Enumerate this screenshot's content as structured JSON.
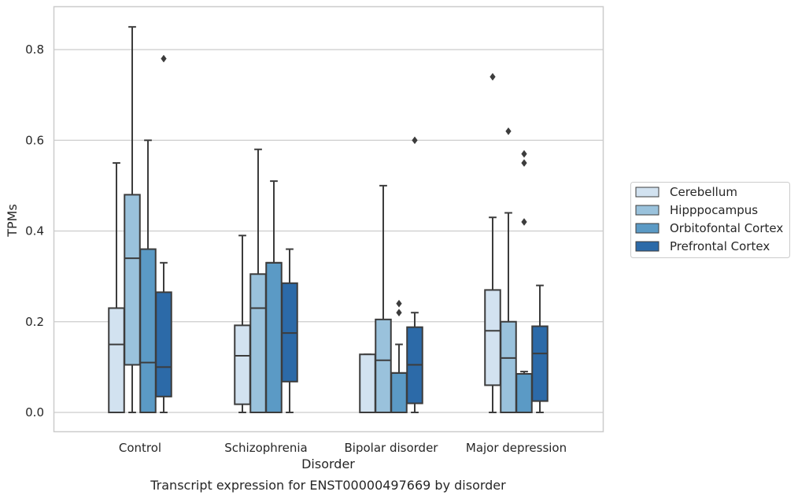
{
  "chart_data": {
    "type": "box",
    "caption": "Transcript expression for ENST00000497669 by disorder",
    "xlabel": "Disorder",
    "ylabel": "TPMs",
    "ylim": [
      -0.04,
      0.9
    ],
    "yticks": [
      0.0,
      0.2,
      0.4,
      0.6,
      0.8
    ],
    "ytick_labels": [
      "0.0",
      "0.2",
      "0.4",
      "0.6",
      "0.8"
    ],
    "grid": true,
    "legend_position": "right",
    "categories": [
      "Control",
      "Schizophrenia",
      "Bipolar disorder",
      "Major depression"
    ],
    "series": [
      {
        "name": "Cerebellum",
        "color": "#d2e2f0",
        "boxes": [
          {
            "whislo": 0.0,
            "q1": 0.0,
            "med": 0.15,
            "q3": 0.23,
            "whishi": 0.55,
            "fliers": []
          },
          {
            "whislo": 0.0,
            "q1": 0.018,
            "med": 0.125,
            "q3": 0.192,
            "whishi": 0.39,
            "fliers": []
          },
          {
            "whislo": 0.0,
            "q1": 0.0,
            "med": 0.0,
            "q3": 0.128,
            "whishi": 0.128,
            "fliers": []
          },
          {
            "whislo": 0.0,
            "q1": 0.06,
            "med": 0.18,
            "q3": 0.27,
            "whishi": 0.43,
            "fliers": [
              0.74
            ]
          }
        ]
      },
      {
        "name": "Hipppocampus",
        "color": "#9ac2dc",
        "boxes": [
          {
            "whislo": 0.0,
            "q1": 0.105,
            "med": 0.34,
            "q3": 0.48,
            "whishi": 0.85,
            "fliers": []
          },
          {
            "whislo": 0.0,
            "q1": 0.0,
            "med": 0.23,
            "q3": 0.305,
            "whishi": 0.58,
            "fliers": []
          },
          {
            "whislo": 0.0,
            "q1": 0.0,
            "med": 0.115,
            "q3": 0.205,
            "whishi": 0.5,
            "fliers": []
          },
          {
            "whislo": 0.0,
            "q1": 0.0,
            "med": 0.12,
            "q3": 0.2,
            "whishi": 0.44,
            "fliers": [
              0.62
            ]
          }
        ]
      },
      {
        "name": "Orbitofontal Cortex",
        "color": "#5b9ac5",
        "boxes": [
          {
            "whislo": 0.0,
            "q1": 0.0,
            "med": 0.11,
            "q3": 0.36,
            "whishi": 0.6,
            "fliers": []
          },
          {
            "whislo": 0.0,
            "q1": 0.0,
            "med": 0.33,
            "q3": 0.33,
            "whishi": 0.51,
            "fliers": []
          },
          {
            "whislo": 0.0,
            "q1": 0.0,
            "med": 0.087,
            "q3": 0.087,
            "whishi": 0.15,
            "fliers": [
              0.22,
              0.24
            ]
          },
          {
            "whislo": 0.0,
            "q1": 0.0,
            "med": 0.085,
            "q3": 0.085,
            "whishi": 0.09,
            "fliers": [
              0.42,
              0.55,
              0.57
            ]
          }
        ]
      },
      {
        "name": "Prefrontal Cortex",
        "color": "#2c6aa8",
        "boxes": [
          {
            "whislo": 0.0,
            "q1": 0.035,
            "med": 0.1,
            "q3": 0.265,
            "whishi": 0.33,
            "fliers": [
              0.78
            ]
          },
          {
            "whislo": 0.0,
            "q1": 0.068,
            "med": 0.175,
            "q3": 0.285,
            "whishi": 0.36,
            "fliers": []
          },
          {
            "whislo": 0.0,
            "q1": 0.02,
            "med": 0.105,
            "q3": 0.188,
            "whishi": 0.22,
            "fliers": [
              0.6
            ]
          },
          {
            "whislo": 0.0,
            "q1": 0.025,
            "med": 0.13,
            "q3": 0.19,
            "whishi": 0.28,
            "fliers": []
          }
        ]
      }
    ]
  }
}
